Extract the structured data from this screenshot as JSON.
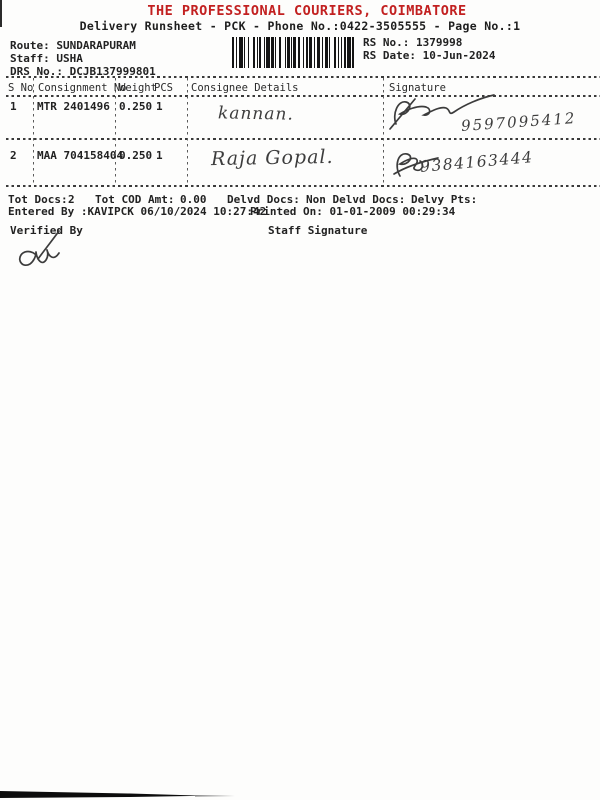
{
  "page": {
    "title": "THE PROFESSIONAL COURIERS, COIMBATORE",
    "subtitle": "Delivery Runsheet - PCK - Phone No.:0422-3505555 - Page No.:1"
  },
  "colors": {
    "title_red": "#c22020",
    "ink": "#222222",
    "handwriting_ink": "#3d3d3d"
  },
  "header": {
    "route_label": "Route:",
    "route_value": "SUNDARAPURAM",
    "staff_label": "Staff:",
    "staff_value": "USHA",
    "drs_label": "DRS No.:",
    "drs_value": "DCJB137999801",
    "rs_no_label": "RS No.:",
    "rs_no_value": "1379998",
    "rs_date_label": "RS Date:",
    "rs_date_value": "10-Jun-2024"
  },
  "table": {
    "columns": [
      "S No",
      "Consignment No",
      "Weight",
      "PCS",
      "Consignee Details",
      "Signature"
    ],
    "rows": [
      {
        "s_no": "1",
        "consignment_no": "MTR 2401496",
        "weight": "0.250",
        "pcs": "1",
        "consignee_handwritten": "kannan.",
        "signature_phone_handwritten": "9597095412"
      },
      {
        "s_no": "2",
        "consignment_no": "MAA 704158404",
        "weight": "0.250",
        "pcs": "1",
        "consignee_handwritten": "Raja Gopal.",
        "signature_phone_handwritten": "9384163444"
      }
    ]
  },
  "summary": {
    "tot_docs_label": "Tot Docs:",
    "tot_docs_value": "2",
    "tot_cod_label": "Tot COD Amt:",
    "tot_cod_value": "0.00",
    "delvd_docs_label": "Delvd Docs:",
    "non_delvd_docs_label": "Non Delvd Docs:",
    "delvy_pts_label": "Delvy Pts:",
    "entered_by_line": "Entered By :KAVIPCK 06/10/2024 10:27:42",
    "printed_on_line": "Printed On: 01-01-2009 00:29:34"
  },
  "footer": {
    "verified_by_label": "Verified By",
    "staff_signature_label": "Staff Signature"
  }
}
